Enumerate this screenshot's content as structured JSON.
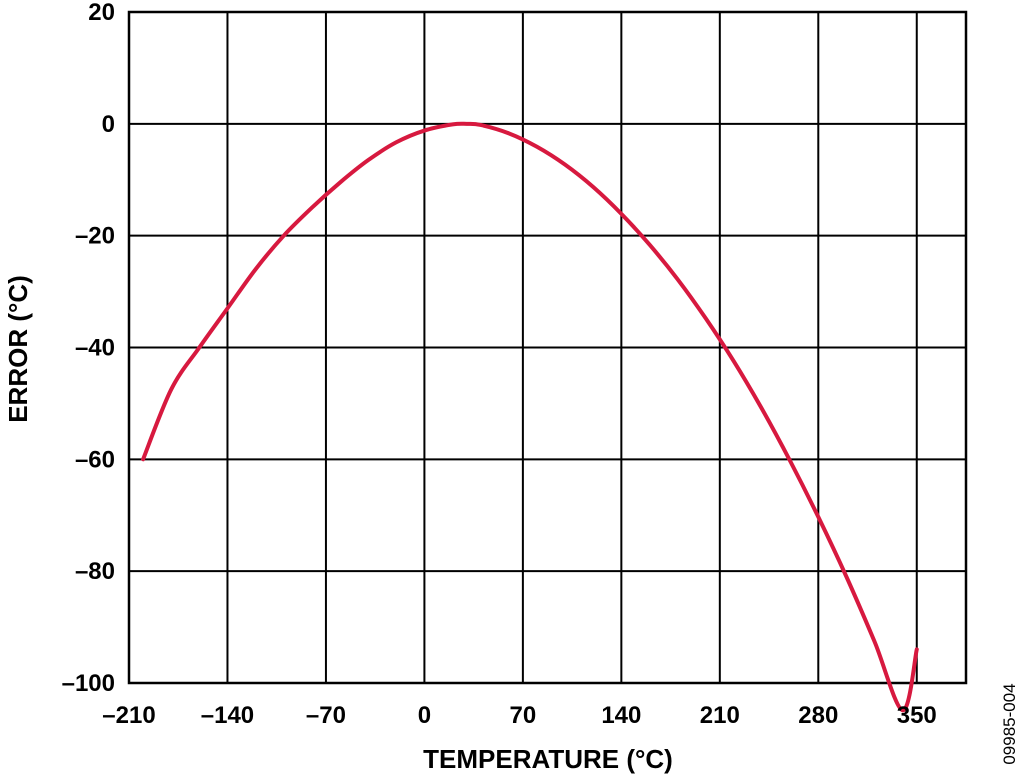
{
  "chart_data": {
    "type": "line",
    "title": "",
    "xlabel": "TEMPERATURE (°C)",
    "ylabel": "ERROR (°C)",
    "xlim": [
      -210,
      385
    ],
    "ylim": [
      -100,
      20
    ],
    "x_ticks": [
      -210,
      -140,
      -70,
      0,
      70,
      140,
      210,
      280,
      350
    ],
    "x_tick_labels": [
      "–210",
      "–140",
      "–70",
      "0",
      "70",
      "140",
      "210",
      "280",
      "350"
    ],
    "y_ticks": [
      20,
      0,
      -20,
      -40,
      -60,
      -80,
      -100
    ],
    "y_tick_labels": [
      "20",
      "0",
      "–20",
      "–40",
      "–60",
      "–80",
      "–100"
    ],
    "grid": true,
    "line_color": "#d7193f",
    "series": [
      {
        "x": [
          -200,
          -180,
          -160,
          -140,
          -120,
          -100,
          -80,
          -60,
          -40,
          -20,
          0,
          20,
          30,
          40,
          60,
          80,
          100,
          120,
          140,
          160,
          180,
          200,
          220,
          240,
          260,
          280,
          300,
          320,
          340,
          350
        ],
        "values": [
          -60,
          -47.5,
          -40,
          -33,
          -26,
          -20,
          -15,
          -10.5,
          -6.5,
          -3.3,
          -1.2,
          -0.1,
          0,
          -0.2,
          -1.7,
          -4.1,
          -7.3,
          -11.3,
          -16.1,
          -21.6,
          -27.8,
          -34.8,
          -42.5,
          -51,
          -60.3,
          -70.3,
          -81,
          -92.6,
          -104.9,
          -94
        ]
      }
    ],
    "figure_id": "09985-004"
  }
}
